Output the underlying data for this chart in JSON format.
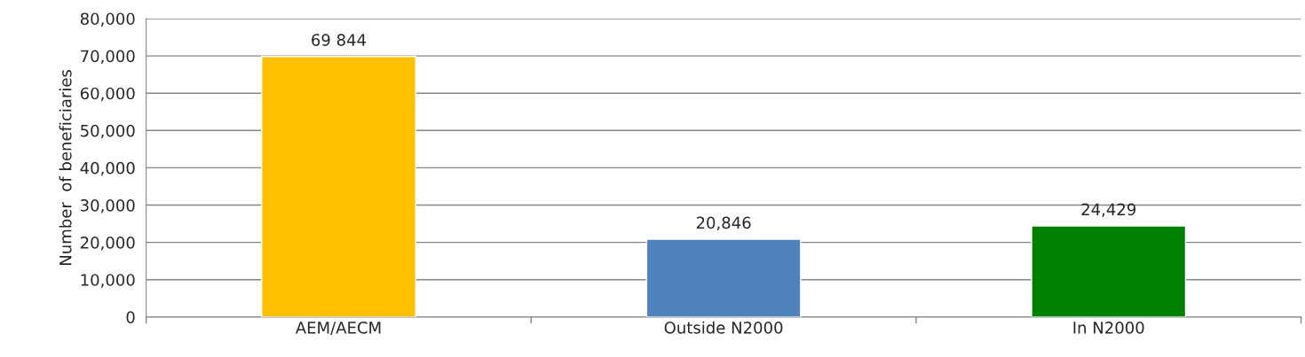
{
  "chart_data": {
    "type": "bar",
    "categories": [
      "AEM/AECM",
      "Outside N2000",
      "In N2000"
    ],
    "values": [
      69844,
      20846,
      24429
    ],
    "colors": [
      "#ffc000",
      "#4f81bd",
      "#008000"
    ],
    "value_labels": [
      "69 844",
      "20,846",
      "24,429"
    ],
    "ylabel": "Number  of beneficiaries",
    "ylim": [
      0,
      80000
    ],
    "yticks": [
      {
        "value": 0,
        "label": "0"
      },
      {
        "value": 10000,
        "label": "10,000"
      },
      {
        "value": 20000,
        "label": "20,000"
      },
      {
        "value": 30000,
        "label": "30,000"
      },
      {
        "value": 40000,
        "label": "40,000"
      },
      {
        "value": 50000,
        "label": "50,000"
      },
      {
        "value": 60000,
        "label": "60,000"
      },
      {
        "value": 70000,
        "label": "70,000"
      },
      {
        "value": 80000,
        "label": "80,000"
      }
    ],
    "grid": "y",
    "legend": false
  }
}
